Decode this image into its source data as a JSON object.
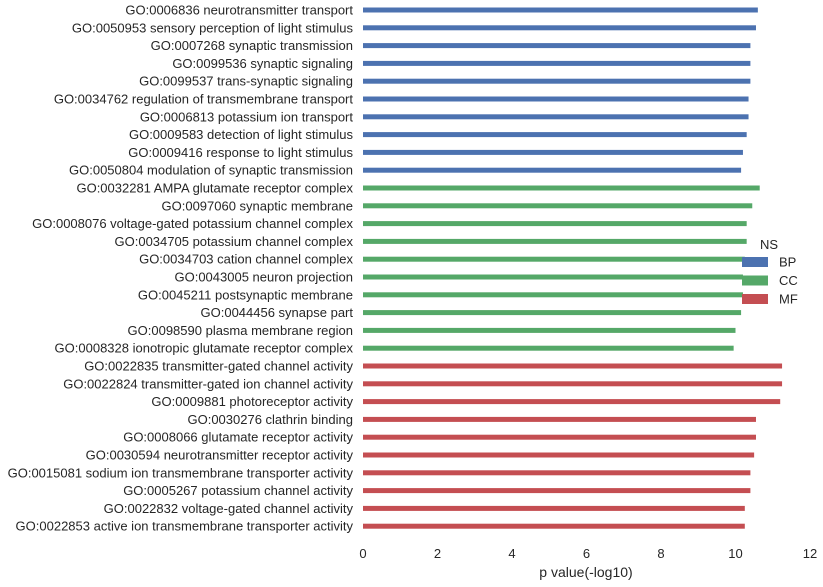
{
  "chart_data": {
    "type": "bar",
    "orientation": "horizontal",
    "xlabel": "p value(-log10)",
    "xlim": [
      0,
      12
    ],
    "xticks": [
      0,
      2,
      4,
      6,
      8,
      10,
      12
    ],
    "grid": false,
    "legend": {
      "title": "NS",
      "placement": "right",
      "entries": [
        {
          "name": "BP",
          "color": "#4c72b0"
        },
        {
          "name": "CC",
          "color": "#55a868"
        },
        {
          "name": "MF",
          "color": "#c44e52"
        }
      ]
    },
    "categories": [
      {
        "label": "GO:0006836 neurotransmitter transport",
        "value": 10.6,
        "group": "BP"
      },
      {
        "label": "GO:0050953 sensory perception of light stimulus",
        "value": 10.55,
        "group": "BP"
      },
      {
        "label": "GO:0007268 synaptic transmission",
        "value": 10.4,
        "group": "BP"
      },
      {
        "label": "GO:0099536 synaptic signaling",
        "value": 10.4,
        "group": "BP"
      },
      {
        "label": "GO:0099537 trans-synaptic signaling",
        "value": 10.4,
        "group": "BP"
      },
      {
        "label": "GO:0034762 regulation of transmembrane transport",
        "value": 10.35,
        "group": "BP"
      },
      {
        "label": "GO:0006813 potassium ion transport",
        "value": 10.35,
        "group": "BP"
      },
      {
        "label": "GO:0009583 detection of light stimulus",
        "value": 10.3,
        "group": "BP"
      },
      {
        "label": "GO:0009416 response to light stimulus",
        "value": 10.2,
        "group": "BP"
      },
      {
        "label": "GO:0050804 modulation of synaptic transmission",
        "value": 10.15,
        "group": "BP"
      },
      {
        "label": "GO:0032281 AMPA glutamate receptor complex",
        "value": 10.65,
        "group": "CC"
      },
      {
        "label": "GO:0097060 synaptic membrane",
        "value": 10.45,
        "group": "CC"
      },
      {
        "label": "GO:0008076 voltage-gated potassium channel complex",
        "value": 10.3,
        "group": "CC"
      },
      {
        "label": "GO:0034705 potassium channel complex",
        "value": 10.3,
        "group": "CC"
      },
      {
        "label": "GO:0034703 cation channel complex",
        "value": 10.25,
        "group": "CC"
      },
      {
        "label": "GO:0043005 neuron projection",
        "value": 10.2,
        "group": "CC"
      },
      {
        "label": "GO:0045211 postsynaptic membrane",
        "value": 10.2,
        "group": "CC"
      },
      {
        "label": "GO:0044456 synapse part",
        "value": 10.15,
        "group": "CC"
      },
      {
        "label": "GO:0098590 plasma membrane region",
        "value": 10.0,
        "group": "CC"
      },
      {
        "label": "GO:0008328 ionotropic glutamate receptor complex",
        "value": 9.95,
        "group": "CC"
      },
      {
        "label": "GO:0022835 transmitter-gated channel activity",
        "value": 11.25,
        "group": "MF"
      },
      {
        "label": "GO:0022824 transmitter-gated ion channel activity",
        "value": 11.25,
        "group": "MF"
      },
      {
        "label": "GO:0009881 photoreceptor activity",
        "value": 11.2,
        "group": "MF"
      },
      {
        "label": "GO:0030276 clathrin binding",
        "value": 10.55,
        "group": "MF"
      },
      {
        "label": "GO:0008066 glutamate receptor activity",
        "value": 10.55,
        "group": "MF"
      },
      {
        "label": "GO:0030594 neurotransmitter receptor activity",
        "value": 10.5,
        "group": "MF"
      },
      {
        "label": "GO:0015081 sodium ion transmembrane transporter activity",
        "value": 10.4,
        "group": "MF"
      },
      {
        "label": "GO:0005267 potassium channel activity",
        "value": 10.4,
        "group": "MF"
      },
      {
        "label": "GO:0022832 voltage-gated channel activity",
        "value": 10.25,
        "group": "MF"
      },
      {
        "label": "GO:0022853 active ion transmembrane transporter activity",
        "value": 10.25,
        "group": "MF"
      }
    ]
  }
}
